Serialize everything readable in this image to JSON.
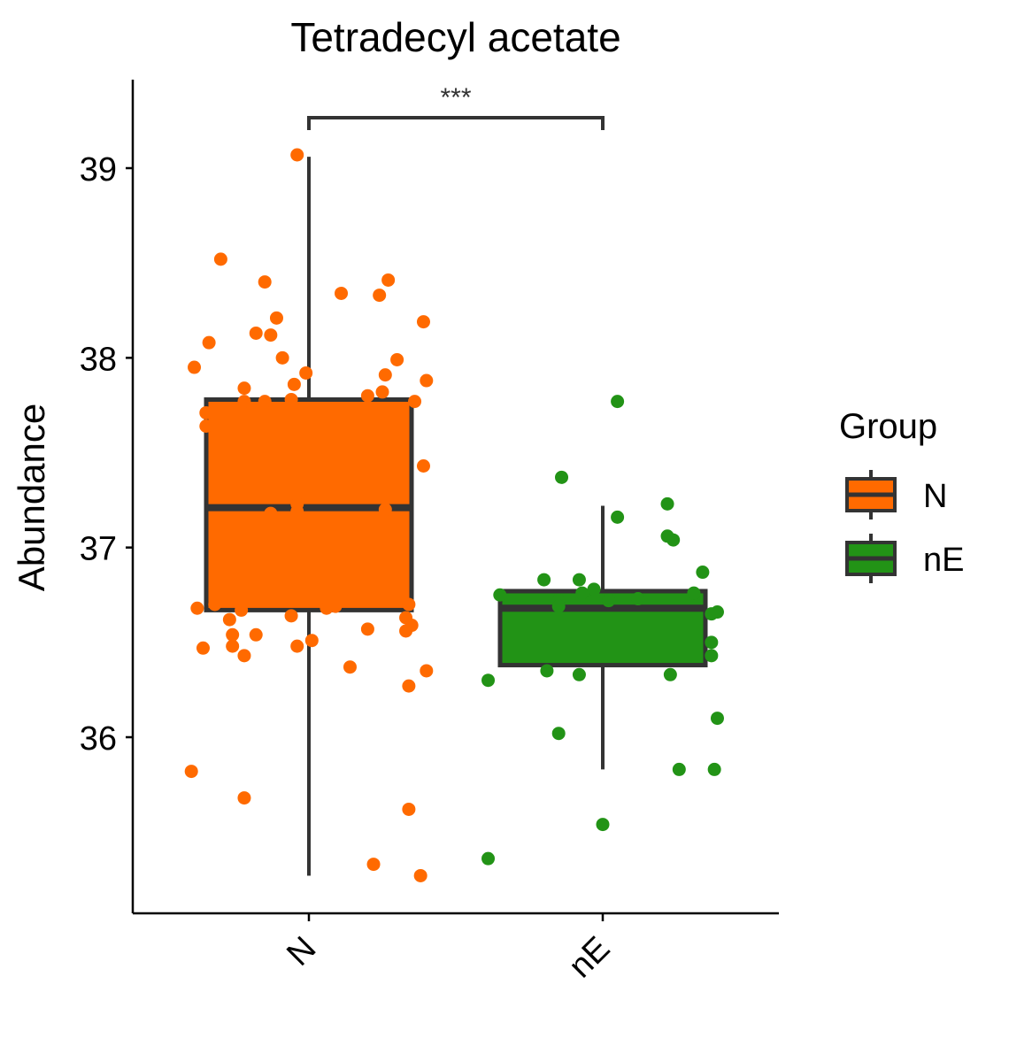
{
  "chart_data": {
    "type": "box",
    "title": "Tetradecyl acetate",
    "xlabel": "",
    "ylabel": "Abundance",
    "ylim": [
      35.05,
      39.45
    ],
    "yticks": [
      36,
      37,
      38,
      39
    ],
    "categories": [
      "N",
      "nE"
    ],
    "legend": {
      "title": "Group",
      "position": "right",
      "entries": [
        "N",
        "nE"
      ]
    },
    "colors": {
      "N": "#FF6A00",
      "nE": "#229316",
      "box_outline": "#333333"
    },
    "significance": {
      "label": "***",
      "between": [
        "N",
        "nE"
      ]
    },
    "boxes": [
      {
        "name": "N",
        "whisker_low": 35.27,
        "q1": 36.67,
        "median": 37.21,
        "q3": 37.78,
        "whisker_high": 39.06
      },
      {
        "name": "nE",
        "whisker_low": 35.83,
        "q1": 36.38,
        "median": 36.68,
        "q3": 36.77,
        "whisker_high": 37.22
      }
    ],
    "points": [
      {
        "group": "N",
        "x": -0.4,
        "y": 35.82
      },
      {
        "group": "N",
        "x": -0.22,
        "y": 35.68
      },
      {
        "group": "N",
        "x": 0.22,
        "y": 35.33
      },
      {
        "group": "N",
        "x": 0.38,
        "y": 35.27
      },
      {
        "group": "N",
        "x": 0.34,
        "y": 35.62
      },
      {
        "group": "N",
        "x": 0.34,
        "y": 36.27
      },
      {
        "group": "N",
        "x": 0.4,
        "y": 36.35
      },
      {
        "group": "N",
        "x": 0.14,
        "y": 36.37
      },
      {
        "group": "N",
        "x": -0.36,
        "y": 36.47
      },
      {
        "group": "N",
        "x": -0.26,
        "y": 36.48
      },
      {
        "group": "N",
        "x": -0.22,
        "y": 36.43
      },
      {
        "group": "N",
        "x": -0.26,
        "y": 36.54
      },
      {
        "group": "N",
        "x": -0.18,
        "y": 36.54
      },
      {
        "group": "N",
        "x": -0.04,
        "y": 36.48
      },
      {
        "group": "N",
        "x": 0.01,
        "y": 36.51
      },
      {
        "group": "N",
        "x": 0.2,
        "y": 36.57
      },
      {
        "group": "N",
        "x": 0.33,
        "y": 36.56
      },
      {
        "group": "N",
        "x": 0.35,
        "y": 36.59
      },
      {
        "group": "N",
        "x": 0.33,
        "y": 36.63
      },
      {
        "group": "N",
        "x": -0.06,
        "y": 36.64
      },
      {
        "group": "N",
        "x": -0.27,
        "y": 36.62
      },
      {
        "group": "N",
        "x": -0.23,
        "y": 36.67
      },
      {
        "group": "N",
        "x": -0.38,
        "y": 36.68
      },
      {
        "group": "N",
        "x": -0.32,
        "y": 36.7
      },
      {
        "group": "N",
        "x": 0.06,
        "y": 36.68
      },
      {
        "group": "N",
        "x": 0.09,
        "y": 36.69
      },
      {
        "group": "N",
        "x": 0.34,
        "y": 36.7
      },
      {
        "group": "N",
        "x": -0.13,
        "y": 37.18
      },
      {
        "group": "N",
        "x": -0.04,
        "y": 37.19
      },
      {
        "group": "N",
        "x": -0.04,
        "y": 37.23
      },
      {
        "group": "N",
        "x": 0.26,
        "y": 37.2
      },
      {
        "group": "N",
        "x": 0.39,
        "y": 37.43
      },
      {
        "group": "N",
        "x": -0.35,
        "y": 37.64
      },
      {
        "group": "N",
        "x": -0.35,
        "y": 37.71
      },
      {
        "group": "N",
        "x": -0.22,
        "y": 37.77
      },
      {
        "group": "N",
        "x": -0.15,
        "y": 37.77
      },
      {
        "group": "N",
        "x": -0.06,
        "y": 37.78
      },
      {
        "group": "N",
        "x": -0.22,
        "y": 37.84
      },
      {
        "group": "N",
        "x": -0.05,
        "y": 37.86
      },
      {
        "group": "N",
        "x": -0.01,
        "y": 37.92
      },
      {
        "group": "N",
        "x": 0.2,
        "y": 37.8
      },
      {
        "group": "N",
        "x": 0.25,
        "y": 37.82
      },
      {
        "group": "N",
        "x": 0.36,
        "y": 37.77
      },
      {
        "group": "N",
        "x": 0.4,
        "y": 37.88
      },
      {
        "group": "N",
        "x": -0.39,
        "y": 37.95
      },
      {
        "group": "N",
        "x": 0.26,
        "y": 37.91
      },
      {
        "group": "N",
        "x": 0.3,
        "y": 37.99
      },
      {
        "group": "N",
        "x": -0.09,
        "y": 38.0
      },
      {
        "group": "N",
        "x": -0.34,
        "y": 38.08
      },
      {
        "group": "N",
        "x": -0.18,
        "y": 38.13
      },
      {
        "group": "N",
        "x": -0.13,
        "y": 38.12
      },
      {
        "group": "N",
        "x": -0.11,
        "y": 38.21
      },
      {
        "group": "N",
        "x": 0.39,
        "y": 38.19
      },
      {
        "group": "N",
        "x": 0.24,
        "y": 38.33
      },
      {
        "group": "N",
        "x": 0.11,
        "y": 38.34
      },
      {
        "group": "N",
        "x": -0.15,
        "y": 38.4
      },
      {
        "group": "N",
        "x": 0.27,
        "y": 38.41
      },
      {
        "group": "N",
        "x": -0.3,
        "y": 38.52
      },
      {
        "group": "N",
        "x": -0.04,
        "y": 39.07
      },
      {
        "group": "nE",
        "x": -0.39,
        "y": 35.36
      },
      {
        "group": "nE",
        "x": 0.0,
        "y": 35.54
      },
      {
        "group": "nE",
        "x": -0.15,
        "y": 36.02
      },
      {
        "group": "nE",
        "x": 0.26,
        "y": 35.83
      },
      {
        "group": "nE",
        "x": 0.38,
        "y": 35.83
      },
      {
        "group": "nE",
        "x": 0.39,
        "y": 36.1
      },
      {
        "group": "nE",
        "x": -0.39,
        "y": 36.3
      },
      {
        "group": "nE",
        "x": -0.19,
        "y": 36.35
      },
      {
        "group": "nE",
        "x": -0.08,
        "y": 36.33
      },
      {
        "group": "nE",
        "x": 0.23,
        "y": 36.33
      },
      {
        "group": "nE",
        "x": 0.37,
        "y": 36.43
      },
      {
        "group": "nE",
        "x": 0.37,
        "y": 36.5
      },
      {
        "group": "nE",
        "x": 0.37,
        "y": 36.65
      },
      {
        "group": "nE",
        "x": 0.39,
        "y": 36.66
      },
      {
        "group": "nE",
        "x": -0.35,
        "y": 36.75
      },
      {
        "group": "nE",
        "x": -0.2,
        "y": 36.83
      },
      {
        "group": "nE",
        "x": -0.15,
        "y": 36.72
      },
      {
        "group": "nE",
        "x": -0.15,
        "y": 36.69
      },
      {
        "group": "nE",
        "x": -0.08,
        "y": 36.83
      },
      {
        "group": "nE",
        "x": -0.07,
        "y": 36.76
      },
      {
        "group": "nE",
        "x": -0.03,
        "y": 36.78
      },
      {
        "group": "nE",
        "x": 0.02,
        "y": 36.72
      },
      {
        "group": "nE",
        "x": 0.12,
        "y": 36.73
      },
      {
        "group": "nE",
        "x": 0.31,
        "y": 36.76
      },
      {
        "group": "nE",
        "x": 0.34,
        "y": 36.87
      },
      {
        "group": "nE",
        "x": -0.14,
        "y": 37.37
      },
      {
        "group": "nE",
        "x": 0.05,
        "y": 37.16
      },
      {
        "group": "nE",
        "x": 0.22,
        "y": 37.23
      },
      {
        "group": "nE",
        "x": 0.22,
        "y": 37.06
      },
      {
        "group": "nE",
        "x": 0.24,
        "y": 37.04
      },
      {
        "group": "nE",
        "x": 0.05,
        "y": 37.77
      }
    ]
  }
}
